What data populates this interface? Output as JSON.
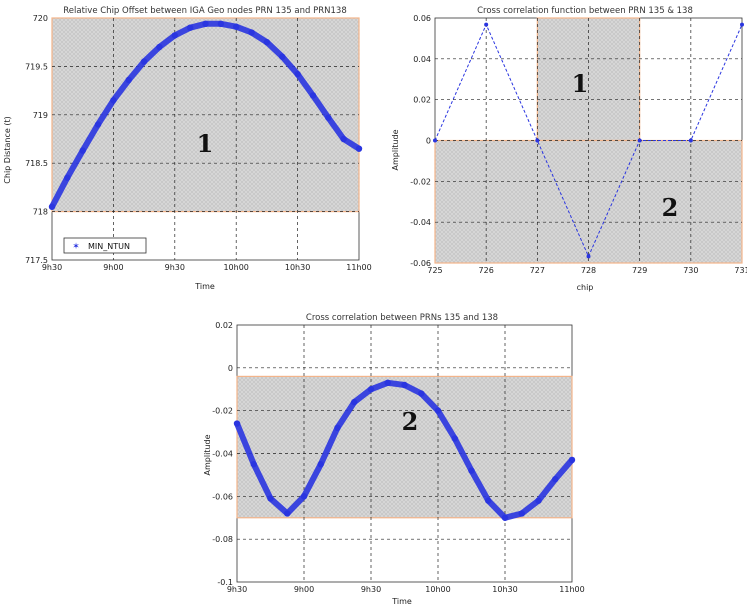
{
  "chart_data": [
    {
      "type": "scatter",
      "title": "Relative Chip Offset between IGA Geo nodes PRN 135 and PRN138",
      "xlabel": "Time",
      "ylabel": "Chip Distance (t)",
      "x_ticks": [
        "9h30",
        "9h00",
        "9h30",
        "10h00",
        "10h30",
        "11h00"
      ],
      "y_ticks": [
        "720",
        "719.5",
        "719",
        "718.5",
        "718",
        "717.5"
      ],
      "ylim": [
        717.5,
        720.0
      ],
      "legend": "MIN_NTUN",
      "legend_position": "bottom-left",
      "grid": true,
      "region_label": "1",
      "highlight_range_y": [
        718.0,
        720.0
      ],
      "series": [
        {
          "x": [
            0,
            0.05,
            0.1,
            0.15,
            0.2,
            0.25,
            0.3,
            0.35,
            0.4,
            0.45,
            0.5,
            0.55,
            0.6,
            0.65,
            0.7,
            0.75,
            0.8,
            0.85,
            0.9,
            0.95,
            1.0
          ],
          "y": [
            718.05,
            718.35,
            718.63,
            718.9,
            719.15,
            719.36,
            719.55,
            719.7,
            719.82,
            719.9,
            719.94,
            719.94,
            719.91,
            719.85,
            719.75,
            719.6,
            719.42,
            719.2,
            718.97,
            718.75,
            718.65
          ]
        }
      ]
    },
    {
      "type": "line",
      "title": "Cross correlation function between PRN 135 & 138",
      "xlabel": "chip",
      "ylabel": "Amplitude",
      "x_ticks": [
        "725",
        "726",
        "727",
        "728",
        "729",
        "730",
        "731"
      ],
      "y_ticks": [
        "0.06",
        "0.04",
        "0.02",
        "0",
        "-0.02",
        "-0.04",
        "-0.06"
      ],
      "xlim": [
        725,
        731
      ],
      "ylim": [
        -0.065,
        0.065
      ],
      "grid": true,
      "region_labels": [
        "1",
        "2"
      ],
      "highlight_regions": [
        {
          "x": [
            727,
            729
          ],
          "y": [
            0,
            0.065
          ]
        },
        {
          "x": [
            725,
            731
          ],
          "y": [
            -0.065,
            0
          ]
        }
      ],
      "series": [
        {
          "x": [
            725,
            726,
            727,
            728,
            729,
            730,
            731
          ],
          "y": [
            0,
            0.0615,
            0,
            -0.0615,
            0,
            0,
            0.0615
          ]
        }
      ]
    },
    {
      "type": "scatter",
      "title": "Cross correlation between PRNs 135 and 138",
      "xlabel": "Time",
      "ylabel": "Amplitude",
      "x_ticks": [
        "9h30",
        "9h00",
        "9h30",
        "10h00",
        "10h30",
        "11h00"
      ],
      "y_ticks": [
        "0.02",
        "0",
        "-0.02",
        "-0.04",
        "-0.06",
        "-0.08",
        "-0.1"
      ],
      "ylim": [
        -0.1,
        0.02
      ],
      "grid": true,
      "region_label": "2",
      "highlight_range_y": [
        -0.07,
        -0.004
      ],
      "series": [
        {
          "x": [
            0,
            0.05,
            0.1,
            0.15,
            0.2,
            0.25,
            0.3,
            0.35,
            0.4,
            0.45,
            0.5,
            0.55,
            0.6,
            0.65,
            0.7,
            0.75,
            0.8,
            0.85,
            0.9,
            0.95,
            1.0
          ],
          "y": [
            -0.026,
            -0.045,
            -0.061,
            -0.068,
            -0.06,
            -0.045,
            -0.028,
            -0.016,
            -0.01,
            -0.007,
            -0.008,
            -0.012,
            -0.02,
            -0.033,
            -0.048,
            -0.062,
            -0.07,
            -0.068,
            -0.062,
            -0.052,
            -0.043
          ]
        }
      ]
    }
  ],
  "colors": {
    "series": "#2a35e0",
    "highlight_fill": "#d4d4d4",
    "highlight_border": "#f3b48a"
  }
}
